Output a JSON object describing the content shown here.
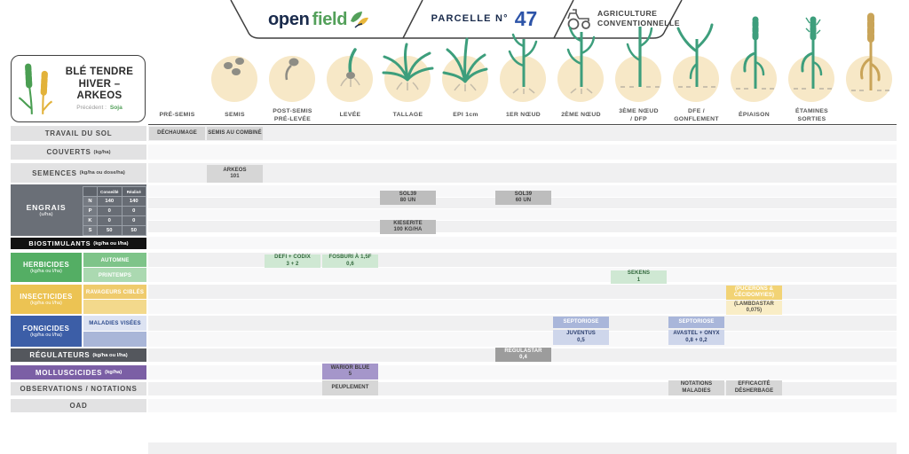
{
  "header": {
    "logo_open": "open",
    "logo_field": "field",
    "parcelle_label": "PARCELLE N°",
    "parcelle_number": "47",
    "agriculture": "AGRICULTURE\nCONVENTIONNELLE"
  },
  "crop_card": {
    "title": "BLÉ TENDRE\nHIVER –\nARKEOS",
    "precedent_label": "Précédent :",
    "precedent_value": "Soja"
  },
  "timeline": {
    "stages": [
      {
        "label": "PRÉ-SEMIS",
        "icon": "none"
      },
      {
        "label": "SEMIS",
        "icon": "seeds"
      },
      {
        "label": "POST-SEMIS\nPRÉ-LEVÉE",
        "icon": "germination"
      },
      {
        "label": "LEVÉE",
        "icon": "sprout"
      },
      {
        "label": "TALLAGE",
        "icon": "tillering"
      },
      {
        "label": "EPI 1cm",
        "icon": "epi1cm"
      },
      {
        "label": "1ER NŒUD",
        "icon": "stem1"
      },
      {
        "label": "2ÈME NŒUD",
        "icon": "stem2"
      },
      {
        "label": "3ÈME NŒUD\n/ DFP",
        "icon": "stem3"
      },
      {
        "label": "DFE /\nGONFLEMENT",
        "icon": "flagleaf"
      },
      {
        "label": "ÉPIAISON",
        "icon": "heading"
      },
      {
        "label": "ÉTAMINES\nSORTIES",
        "icon": "flowering"
      },
      {
        "label": "",
        "icon": "mature"
      }
    ]
  },
  "rows": {
    "travail": {
      "label": "TRAVAIL DU SOL",
      "unit": ""
    },
    "couverts": {
      "label": "COUVERTS",
      "unit": "(kg/ha)"
    },
    "semences": {
      "label": "SEMENCES",
      "unit": "(kg/ha ou dose/ha)"
    },
    "engrais": {
      "label": "ENGRAIS",
      "unit": "(u/ha)",
      "col_conseille": "Conseillé",
      "col_realise": "Réalisé",
      "lines": [
        {
          "el": "N",
          "conseille": "140",
          "realise": "140"
        },
        {
          "el": "P",
          "conseille": "0",
          "realise": "0"
        },
        {
          "el": "K",
          "conseille": "0",
          "realise": "0"
        },
        {
          "el": "S",
          "conseille": "50",
          "realise": "50"
        }
      ]
    },
    "biostimulants": {
      "label": "BIOSTIMULANTS",
      "unit": "(kg/ha ou l/ha)"
    },
    "herbicides": {
      "label": "HERBICIDES",
      "unit": "(kg/ha ou l/ha)",
      "sub1": "AUTOMNE",
      "sub2": "PRINTEMPS"
    },
    "insecticides": {
      "label": "INSECTICIDES",
      "unit": "(kg/ha ou l/ha)",
      "sub1": "RAVAGEURS CIBLÉS",
      "sub2": ""
    },
    "fongicides": {
      "label": "FONGICIDES",
      "unit": "(kg/ha ou l/ha)",
      "sub1": "MALADIES VISÉES",
      "sub2": ""
    },
    "regulateurs": {
      "label": "RÉGULATEURS",
      "unit": "(kg/ha ou l/ha)"
    },
    "molluscicides": {
      "label": "MOLLUSCICIDES",
      "unit": "(kg/ha)"
    },
    "observations": {
      "label": "OBSERVATIONS / NOTATIONS",
      "unit": ""
    },
    "oad": {
      "label": "OAD",
      "unit": ""
    }
  },
  "grid": {
    "cells": [
      {
        "row": "travail",
        "col": 0,
        "text": "DÉCHAUMAGE",
        "style": "gray"
      },
      {
        "row": "travail",
        "col": 1,
        "text": "SEMIS AU COMBINÉ",
        "style": "gray"
      },
      {
        "row": "semences",
        "col": 1,
        "text": "ARKEOS\n101",
        "style": "gray"
      },
      {
        "row": "engrais_n",
        "col": 4,
        "text": "SOL39\n80 UN",
        "style": "gray-mid"
      },
      {
        "row": "engrais_n",
        "col": 6,
        "text": "SOL39\n60 UN",
        "style": "gray-mid"
      },
      {
        "row": "engrais_s",
        "col": 4,
        "text": "KIESERITE\n100 KG/HA",
        "style": "gray-mid"
      },
      {
        "row": "herb1",
        "col": 2,
        "text": "DEFI + CODIX\n3 + 2",
        "style": "green"
      },
      {
        "row": "herb1",
        "col": 3,
        "text": "FOSBURI À 1,5F\n0,6",
        "style": "green"
      },
      {
        "row": "herb2",
        "col": 8,
        "text": "SEKENS\n1",
        "style": "green"
      },
      {
        "row": "insect1",
        "col": 10,
        "text": "(PUCERONS &\nCÉCIDOMYIES)",
        "style": "gold-dark"
      },
      {
        "row": "insect2",
        "col": 10,
        "text": "(LAMBDASTAR\n0,075)",
        "style": "gold-light"
      },
      {
        "row": "fong1",
        "col": 7,
        "text": "SEPTORIOSE",
        "style": "blue-mid"
      },
      {
        "row": "fong1",
        "col": 9,
        "text": "SEPTORIOSE",
        "style": "blue-mid"
      },
      {
        "row": "fong2",
        "col": 7,
        "text": "JUVENTUS\n0,5",
        "style": "blue-light"
      },
      {
        "row": "fong2",
        "col": 9,
        "text": "AVASTEL + ONYX\n0,8 + 0,2",
        "style": "blue-light"
      },
      {
        "row": "regul",
        "col": 6,
        "text": "REGULASTAR\n0,4",
        "style": "gray-dark"
      },
      {
        "row": "mollusc",
        "col": 3,
        "text": "WARIOR BLUE\n5",
        "style": "purple"
      },
      {
        "row": "obs",
        "col": 3,
        "text": "PEUPLEMENT",
        "style": "gray"
      },
      {
        "row": "obs",
        "col": 9,
        "text": "NOTATIONS MALADIES",
        "style": "gray"
      },
      {
        "row": "obs",
        "col": 10,
        "text": "EFFICACITÉ\nDÉSHERBAGE",
        "style": "gray"
      }
    ]
  },
  "colors": {
    "herbicides_green": "#54ae64",
    "insecticides_gold": "#ecc353",
    "fongicides_blue": "#3c5ea7",
    "molluscicides_purple": "#7b5fa5",
    "stage_circle": "#f7e8c7",
    "plant_green": "#3d9e7c",
    "plant_gold": "#c9a458",
    "logo_navy": "#1a2b4c",
    "logo_green": "#53a05a",
    "parcelle_blue": "#2d54a8"
  }
}
